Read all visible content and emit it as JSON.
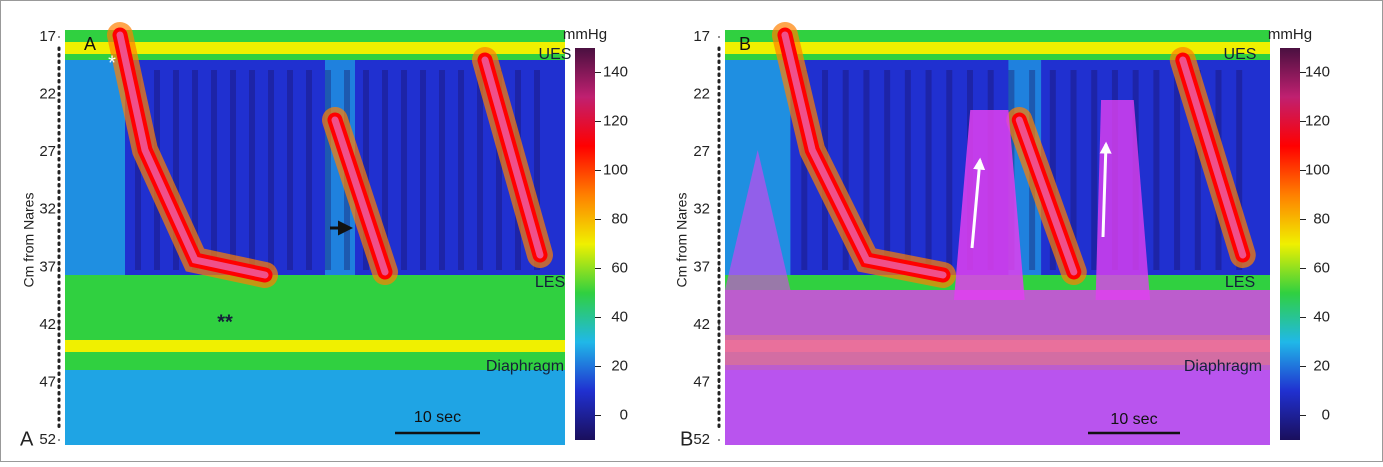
{
  "chart_data": [
    {
      "type": "heatmap",
      "panel": "A",
      "inner_label": "A",
      "ylabel": "Cm from Nares",
      "ylim": [
        17,
        52
      ],
      "yticks": [
        17,
        22,
        27,
        32,
        37,
        42,
        47,
        52
      ],
      "colorbar_title": "mmHg",
      "clim": [
        -10,
        150
      ],
      "cticks": [
        0,
        20,
        40,
        60,
        80,
        100,
        120,
        140
      ],
      "colormap": [
        "#1a0f5c",
        "#2030d0",
        "#20b8e8",
        "#30d040",
        "#f0f000",
        "#ff8000",
        "#ff0000",
        "#c02070",
        "#4a1040"
      ],
      "annotations": [
        "UES",
        "LES",
        "Diaphragm",
        "*",
        "**"
      ],
      "scale_bar": "10 sec"
    },
    {
      "type": "heatmap",
      "panel": "B",
      "inner_label": "B",
      "ylabel": "Cm from Nares",
      "ylim": [
        17,
        52
      ],
      "yticks": [
        17,
        22,
        27,
        32,
        37,
        42,
        47,
        52
      ],
      "colorbar_title": "mmHg",
      "clim": [
        -10,
        150
      ],
      "cticks": [
        0,
        20,
        40,
        60,
        80,
        100,
        120,
        140
      ],
      "colormap": [
        "#1a0f5c",
        "#2030d0",
        "#20b8e8",
        "#30d040",
        "#f0f000",
        "#ff8000",
        "#ff0000",
        "#c02070",
        "#4a1040"
      ],
      "annotations": [
        "UES",
        "LES",
        "Diaphragm"
      ],
      "scale_bar": "10 sec"
    }
  ]
}
